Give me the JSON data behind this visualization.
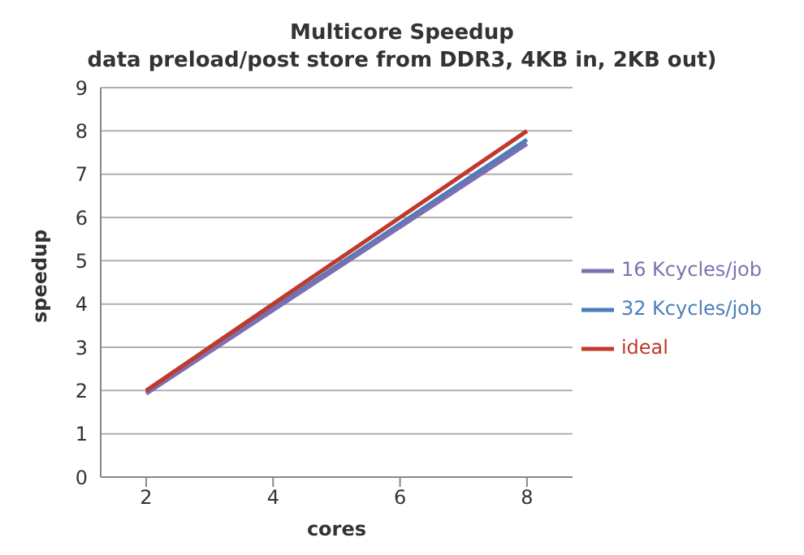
{
  "chart_data": {
    "type": "line",
    "title": "Multicore Speedup",
    "subtitle": "data preload/post store from DDR3, 4KB in, 2KB out)",
    "xlabel": "cores",
    "ylabel": "speedup",
    "categories": [
      "2",
      "4",
      "6",
      "8"
    ],
    "series": [
      {
        "name": "32 Kcycles/job",
        "color": "#4a7ebb",
        "values": [
          1.96,
          3.9,
          5.85,
          7.8
        ]
      },
      {
        "name": "16 Kcycles/job",
        "color": "#7e6fb0",
        "values": [
          1.93,
          3.86,
          5.78,
          7.7
        ]
      },
      {
        "name": "ideal",
        "color": "#c0392b",
        "values": [
          2,
          4,
          6,
          8
        ]
      }
    ],
    "ylim": [
      0,
      9
    ],
    "yticks": [
      0,
      1,
      2,
      3,
      4,
      5,
      6,
      7,
      8,
      9
    ],
    "grid": "y",
    "legend": "right",
    "marker": "none",
    "line_style": "solid"
  }
}
